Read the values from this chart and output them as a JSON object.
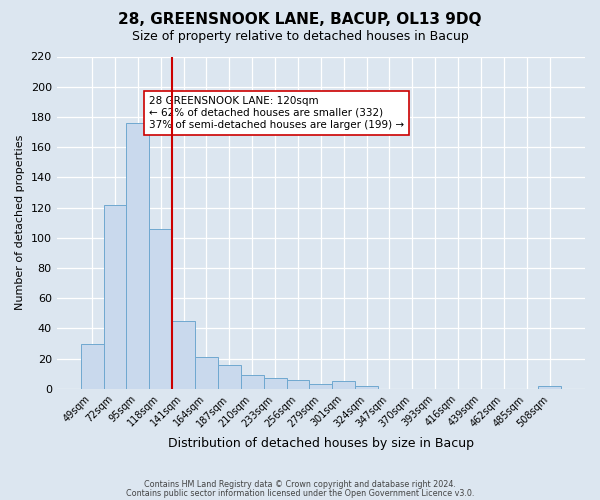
{
  "title": "28, GREENSNOOK LANE, BACUP, OL13 9DQ",
  "subtitle": "Size of property relative to detached houses in Bacup",
  "bar_labels": [
    "49sqm",
    "72sqm",
    "95sqm",
    "118sqm",
    "141sqm",
    "164sqm",
    "187sqm",
    "210sqm",
    "233sqm",
    "256sqm",
    "279sqm",
    "301sqm",
    "324sqm",
    "347sqm",
    "370sqm",
    "393sqm",
    "416sqm",
    "439sqm",
    "462sqm",
    "485sqm",
    "508sqm"
  ],
  "bar_values": [
    30,
    122,
    176,
    106,
    45,
    21,
    16,
    9,
    7,
    6,
    3,
    5,
    2,
    0,
    0,
    0,
    0,
    0,
    0,
    0,
    2
  ],
  "bar_color": "#c9d9ed",
  "bar_edge_color": "#6fa8d0",
  "vline_pos": 3.5,
  "vline_color": "#cc0000",
  "ylim": [
    0,
    220
  ],
  "yticks": [
    0,
    20,
    40,
    60,
    80,
    100,
    120,
    140,
    160,
    180,
    200,
    220
  ],
  "ylabel": "Number of detached properties",
  "xlabel": "Distribution of detached houses by size in Bacup",
  "annotation_title": "28 GREENSNOOK LANE: 120sqm",
  "annotation_line1": "← 62% of detached houses are smaller (332)",
  "annotation_line2": "37% of semi-detached houses are larger (199) →",
  "annotation_box_color": "#ffffff",
  "annotation_box_edge": "#cc0000",
  "footer1": "Contains HM Land Registry data © Crown copyright and database right 2024.",
  "footer2": "Contains public sector information licensed under the Open Government Licence v3.0.",
  "background_color": "#dce6f0",
  "plot_background_color": "#dce6f0",
  "grid_color": "#ffffff",
  "title_fontsize": 11,
  "subtitle_fontsize": 9
}
